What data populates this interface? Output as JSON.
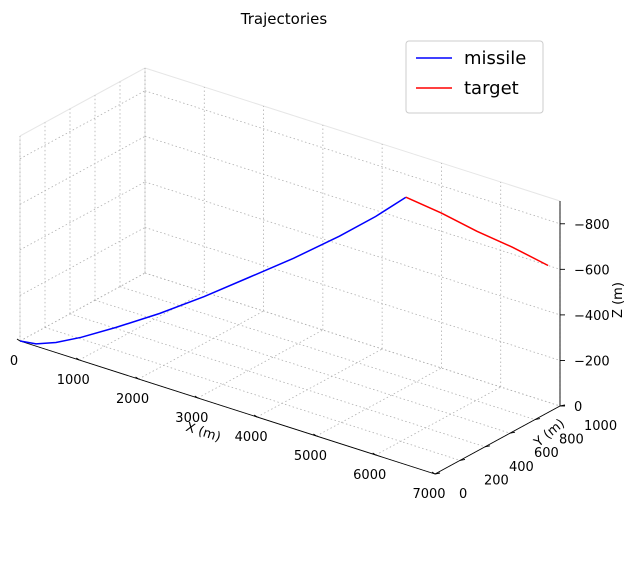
{
  "chart_data": {
    "type": "line",
    "projection": "3d",
    "title": "Trajectories",
    "xlabel": "X (m)",
    "ylabel": "Y (m)",
    "zlabel": "Z (m)",
    "xlim": [
      0,
      7000
    ],
    "ylim": [
      0,
      1000
    ],
    "zlim": [
      0,
      -900
    ],
    "x_ticks": [
      0,
      1000,
      2000,
      3000,
      4000,
      5000,
      6000,
      7000
    ],
    "x_tick_labels": [
      "0",
      "1000",
      "2000",
      "3000",
      "4000",
      "5000",
      "6000",
      "7000"
    ],
    "y_ticks": [
      0,
      200,
      400,
      600,
      800,
      1000
    ],
    "y_tick_labels": [
      "0",
      "200",
      "400",
      "600",
      "800",
      "1000"
    ],
    "z_ticks": [
      0,
      -200,
      -400,
      -600,
      -800
    ],
    "z_tick_labels": [
      "0",
      "−200",
      "−400",
      "−600",
      "−800"
    ],
    "grid": true,
    "legend_position": "top-right",
    "series": [
      {
        "name": "missile",
        "color": "#0000ff",
        "points": [
          [
            0,
            0,
            0
          ],
          [
            250,
            10,
            -5
          ],
          [
            500,
            50,
            -20
          ],
          [
            800,
            110,
            -50
          ],
          [
            1200,
            200,
            -100
          ],
          [
            1700,
            310,
            -170
          ],
          [
            2200,
            430,
            -250
          ],
          [
            2700,
            550,
            -340
          ],
          [
            3200,
            670,
            -430
          ],
          [
            3700,
            800,
            -530
          ],
          [
            4100,
            900,
            -620
          ],
          [
            4400,
            1000,
            -700
          ]
        ]
      },
      {
        "name": "target",
        "color": "#ff0000",
        "points": [
          [
            4400,
            1000,
            -700
          ],
          [
            5000,
            1000,
            -680
          ],
          [
            5600,
            1000,
            -650
          ],
          [
            6200,
            1000,
            -630
          ],
          [
            6800,
            1000,
            -600
          ]
        ]
      }
    ]
  }
}
